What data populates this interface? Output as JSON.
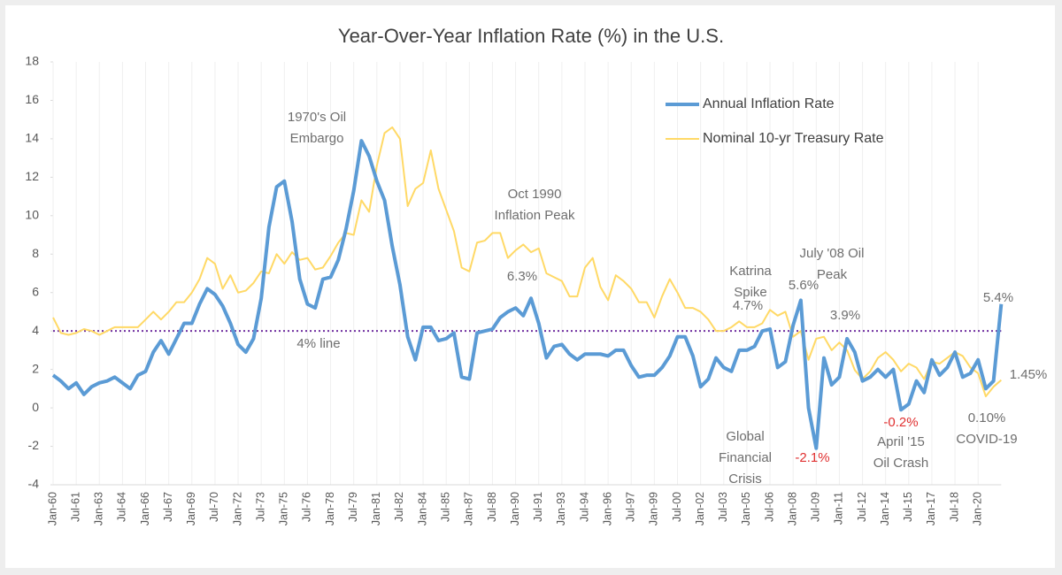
{
  "chart_data": {
    "type": "line",
    "title": "Year-Over-Year Inflation Rate (%) in the U.S.",
    "categories": [
      "Jan-60",
      null,
      null,
      "Jul-61",
      null,
      null,
      "Jan-63",
      null,
      null,
      "Jul-64",
      null,
      null,
      "Jan-66",
      null,
      null,
      "Jul-67",
      null,
      null,
      "Jan-69",
      null,
      null,
      "Jul-70",
      null,
      null,
      "Jan-72",
      null,
      null,
      "Jul-73",
      null,
      null,
      "Jan-75",
      null,
      null,
      "Jul-76",
      null,
      null,
      "Jan-78",
      null,
      null,
      "Jul-79",
      null,
      null,
      "Jan-81",
      null,
      null,
      "Jul-82",
      null,
      null,
      "Jan-84",
      null,
      null,
      "Jul-85",
      null,
      null,
      "Jan-87",
      null,
      null,
      "Jul-88",
      null,
      null,
      "Jan-90",
      null,
      null,
      "Jul-91",
      null,
      null,
      "Jan-93",
      null,
      null,
      "Jul-94",
      null,
      null,
      "Jan-96",
      null,
      null,
      "Jul-97",
      null,
      null,
      "Jan-99",
      null,
      null,
      "Jul-00",
      null,
      null,
      "Jan-02",
      null,
      null,
      "Jul-03",
      null,
      null,
      "Jan-05",
      null,
      null,
      "Jul-06",
      null,
      null,
      "Jan-08",
      null,
      null,
      "Jul-09",
      null,
      null,
      "Jan-11",
      null,
      null,
      "Jul-12",
      null,
      null,
      "Jan-14",
      null,
      null,
      "Jul-15",
      null,
      null,
      "Jan-17",
      null,
      null,
      "Jul-18",
      null,
      null,
      "Jan-20",
      null,
      null,
      null
    ],
    "series": [
      {
        "name": "Annual Inflation Rate",
        "color": "#5b9bd5",
        "width": 4,
        "values": [
          1.7,
          1.4,
          1.0,
          1.3,
          0.7,
          1.1,
          1.3,
          1.4,
          1.6,
          1.3,
          1.0,
          1.7,
          1.9,
          2.9,
          3.5,
          2.8,
          3.6,
          4.4,
          4.4,
          5.4,
          6.2,
          5.9,
          5.3,
          4.4,
          3.3,
          2.9,
          3.6,
          5.7,
          9.4,
          11.5,
          11.8,
          9.7,
          6.7,
          5.4,
          5.2,
          6.7,
          6.8,
          7.7,
          9.3,
          11.3,
          13.9,
          13.1,
          11.8,
          10.8,
          8.4,
          6.4,
          3.7,
          2.5,
          4.2,
          4.2,
          3.5,
          3.6,
          3.9,
          1.6,
          1.5,
          3.9,
          4.0,
          4.1,
          4.7,
          5.0,
          5.2,
          4.8,
          5.7,
          4.4,
          2.6,
          3.2,
          3.3,
          2.8,
          2.5,
          2.8,
          2.8,
          2.8,
          2.7,
          3.0,
          3.0,
          2.2,
          1.6,
          1.7,
          1.7,
          2.1,
          2.7,
          3.7,
          3.7,
          2.7,
          1.1,
          1.5,
          2.6,
          2.1,
          1.9,
          3.0,
          3.0,
          3.2,
          4.0,
          4.1,
          2.1,
          2.4,
          4.3,
          5.6,
          0.0,
          -2.1,
          2.6,
          1.2,
          1.6,
          3.6,
          2.9,
          1.4,
          1.6,
          2.0,
          1.6,
          2.0,
          -0.1,
          0.2,
          1.4,
          0.8,
          2.5,
          1.7,
          2.1,
          2.9,
          1.6,
          1.8,
          2.5,
          1.0,
          1.4,
          5.4
        ]
      },
      {
        "name": "Nominal 10-yr Treasury Rate",
        "color": "#ffd966",
        "width": 2,
        "values": [
          4.7,
          3.9,
          3.8,
          3.9,
          4.1,
          4.0,
          3.8,
          4.0,
          4.2,
          4.2,
          4.2,
          4.2,
          4.6,
          5.0,
          4.6,
          5.0,
          5.5,
          5.5,
          6.0,
          6.7,
          7.8,
          7.5,
          6.2,
          6.9,
          6.0,
          6.1,
          6.5,
          7.1,
          7.0,
          8.0,
          7.5,
          8.1,
          7.7,
          7.8,
          7.2,
          7.3,
          7.9,
          8.6,
          9.1,
          9.0,
          10.8,
          10.2,
          12.6,
          14.3,
          14.6,
          14.0,
          10.5,
          11.4,
          11.7,
          13.4,
          11.4,
          10.3,
          9.2,
          7.3,
          7.1,
          8.6,
          8.7,
          9.1,
          9.1,
          7.8,
          8.2,
          8.5,
          8.1,
          8.3,
          7.0,
          6.8,
          6.6,
          5.8,
          5.8,
          7.3,
          7.8,
          6.3,
          5.6,
          6.9,
          6.6,
          6.2,
          5.5,
          5.5,
          4.7,
          5.8,
          6.7,
          6.0,
          5.2,
          5.2,
          5.0,
          4.6,
          4.0,
          4.0,
          4.2,
          4.5,
          4.2,
          4.2,
          4.4,
          5.1,
          4.8,
          5.0,
          3.7,
          4.0,
          2.5,
          3.6,
          3.7,
          3.0,
          3.4,
          3.0,
          1.97,
          1.5,
          1.9,
          2.6,
          2.9,
          2.5,
          1.9,
          2.3,
          2.1,
          1.5,
          2.4,
          2.3,
          2.6,
          2.9,
          2.7,
          2.1,
          1.8,
          0.6,
          1.1,
          1.45
        ]
      }
    ],
    "ylim": [
      -4,
      18
    ],
    "yticks": [
      -4,
      -2,
      0,
      2,
      4,
      6,
      8,
      10,
      12,
      14,
      16,
      18
    ],
    "grid": "x",
    "legend": "top-right",
    "reference_line": {
      "value": 4,
      "label": "4% line",
      "color": "#7030a0"
    },
    "annotations": [
      {
        "lines": [
          "1970's Oil",
          "Embargo"
        ]
      },
      {
        "lines": [
          "Oct 1990",
          "Inflation Peak"
        ]
      },
      {
        "lines": [
          "6.3%"
        ]
      },
      {
        "lines": [
          "Katrina",
          "Spike"
        ]
      },
      {
        "lines": [
          "4.7%"
        ]
      },
      {
        "lines": [
          "July '08 Oil",
          "Peak"
        ]
      },
      {
        "lines": [
          "5.6%"
        ]
      },
      {
        "lines": [
          "3.9%"
        ]
      },
      {
        "lines": [
          "5.4%"
        ]
      },
      {
        "lines": [
          "1.45%"
        ]
      },
      {
        "lines": [
          "0.10%"
        ]
      },
      {
        "lines": [
          "COVID-19"
        ]
      },
      {
        "lines": [
          "-0.2%"
        ],
        "color": "#e03030"
      },
      {
        "lines": [
          "April '15",
          "Oil Crash"
        ]
      },
      {
        "lines": [
          "Global",
          "Financial",
          "Crisis"
        ]
      },
      {
        "lines": [
          "-2.1%"
        ],
        "color": "#e03030"
      }
    ]
  }
}
